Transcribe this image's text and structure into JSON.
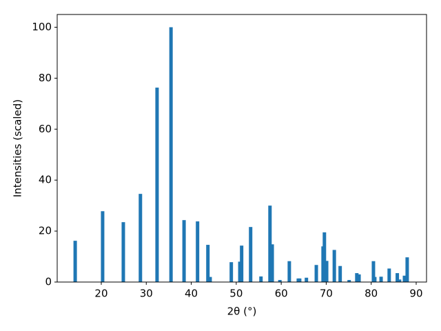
{
  "chart_data": {
    "type": "bar",
    "x_label": "2θ (°)",
    "y_label": "Intensities (scaled)",
    "x": [
      14.2,
      20.3,
      24.9,
      28.7,
      32.4,
      35.5,
      38.4,
      41.4,
      43.7,
      44.2,
      48.9,
      50.8,
      51.2,
      53.2,
      55.5,
      57.5,
      58.0,
      59.7,
      61.8,
      63.8,
      64.1,
      65.6,
      67.8,
      69.3,
      69.6,
      70.1,
      71.8,
      73.1,
      75.1,
      76.8,
      77.3,
      80.5,
      80.8,
      82.2,
      84.0,
      85.8,
      86.3,
      87.4,
      88.0
    ],
    "values": [
      16.2,
      27.8,
      23.5,
      34.6,
      76.3,
      100,
      24.3,
      23.8,
      14.6,
      2,
      7.8,
      8,
      14.3,
      21.6,
      2.2,
      30,
      14.8,
      0.8,
      8.2,
      1.4,
      1.4,
      1.7,
      6.7,
      14,
      19.5,
      8.3,
      12.6,
      6.3,
      0.8,
      3.5,
      3,
      8.2,
      2,
      2.1,
      5.3,
      3.5,
      1,
      2.5,
      9.7
    ],
    "color": "#1f77b4",
    "xlim": [
      10.2,
      92.3
    ],
    "ylim": [
      0,
      105
    ],
    "xticks": [
      20,
      30,
      40,
      50,
      60,
      70,
      80,
      90
    ],
    "yticks": [
      0,
      20,
      40,
      60,
      80,
      100
    ],
    "grid": false
  }
}
